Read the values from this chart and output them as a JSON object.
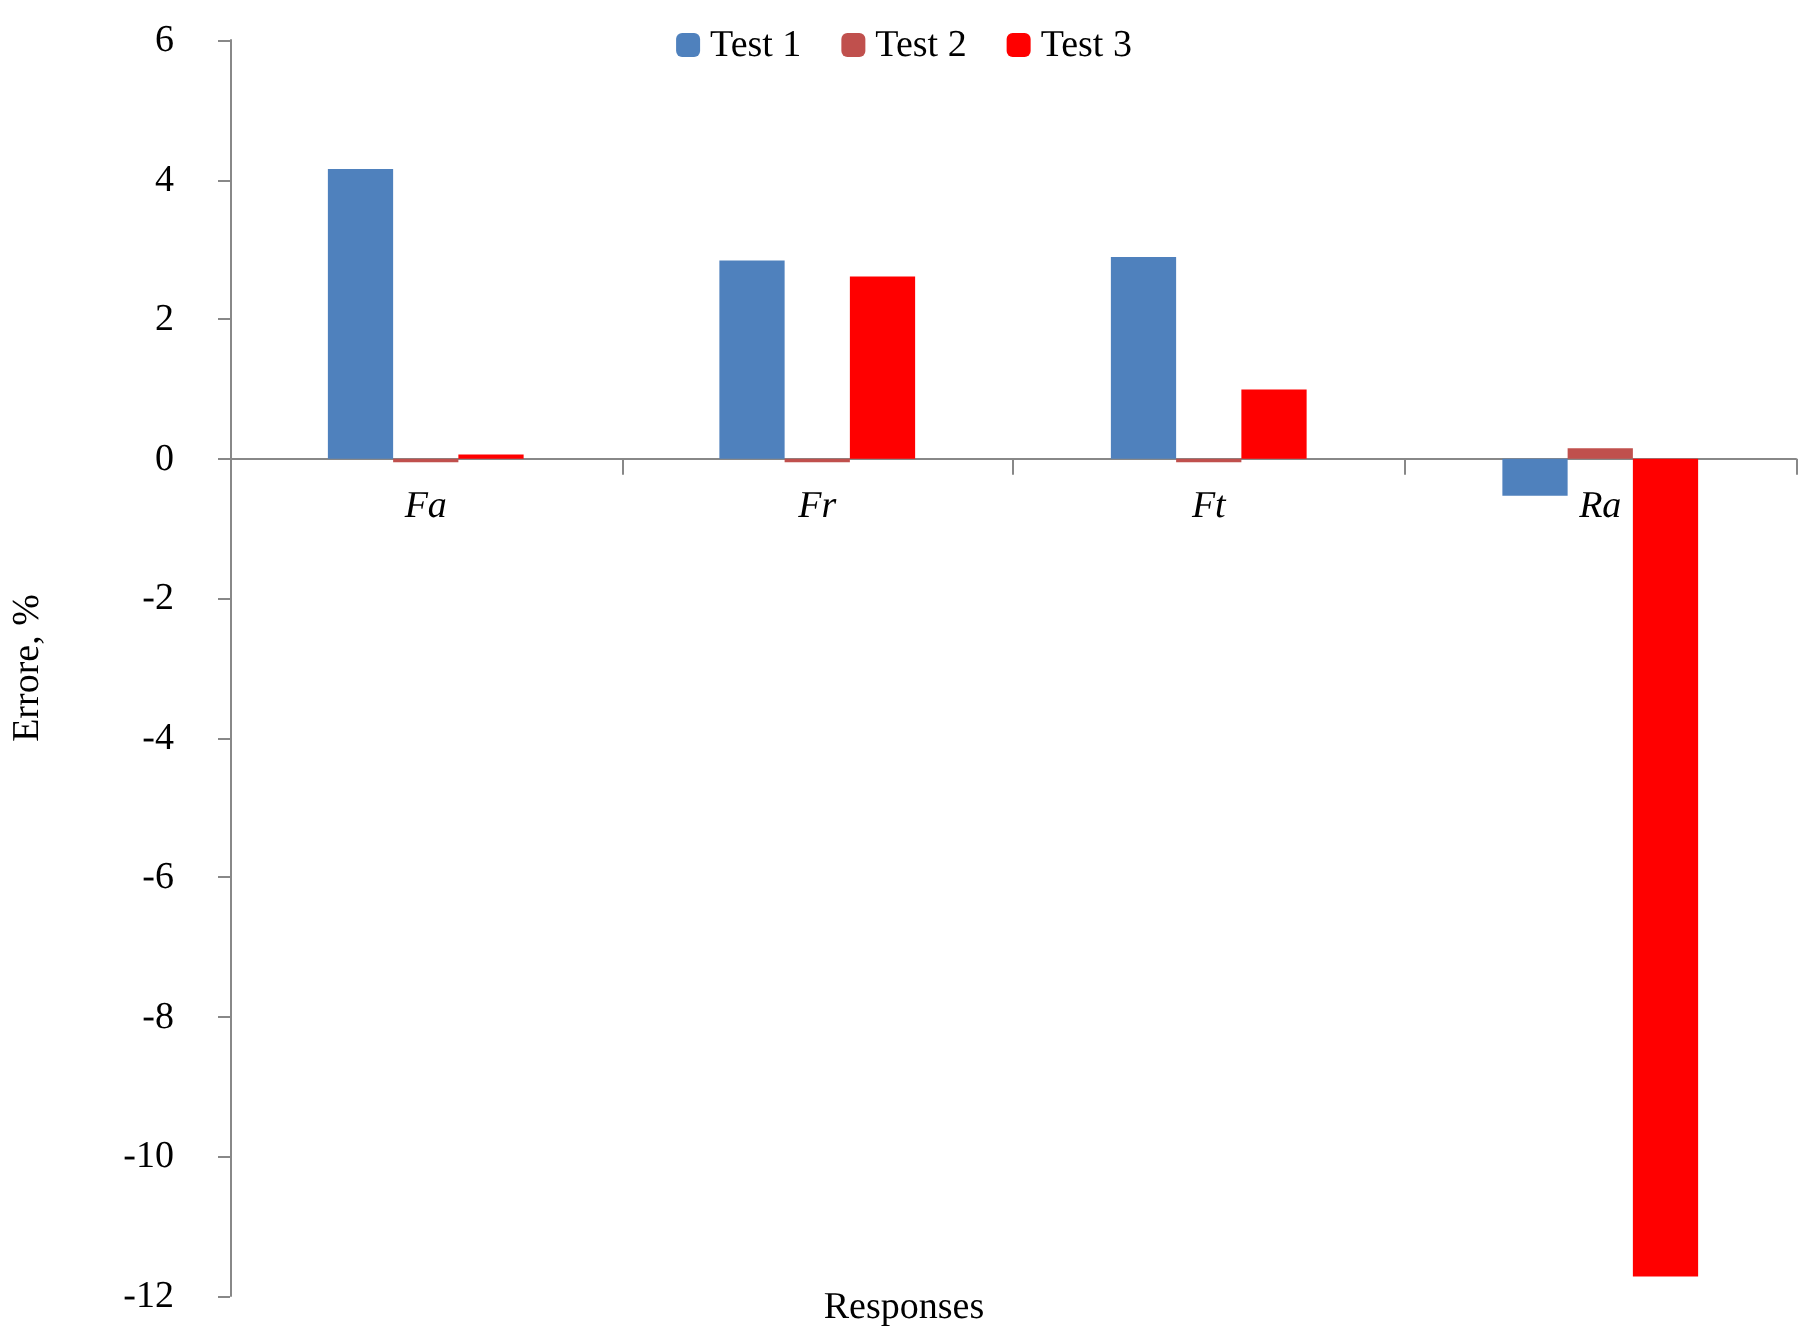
{
  "chart_data": {
    "type": "bar",
    "xlabel": "Responses",
    "ylabel": "Errore, %",
    "categories": [
      "Fa",
      "Fr",
      "Ft",
      "Ra"
    ],
    "series": [
      {
        "name": "Test 1",
        "color": "#4f81bd",
        "values": [
          4.15,
          2.84,
          2.89,
          -0.53
        ]
      },
      {
        "name": "Test 2",
        "color": "#c0504d",
        "values": [
          -0.05,
          -0.05,
          -0.05,
          0.15
        ]
      },
      {
        "name": "Test 3",
        "color": "#ff0000",
        "values": [
          0.06,
          2.61,
          0.99,
          -11.72
        ]
      }
    ],
    "ylim": [
      -12,
      6
    ],
    "yticks": [
      -12,
      -10,
      -8,
      -6,
      -4,
      -2,
      0,
      2,
      4,
      6
    ],
    "grid": false,
    "legend": "top"
  }
}
